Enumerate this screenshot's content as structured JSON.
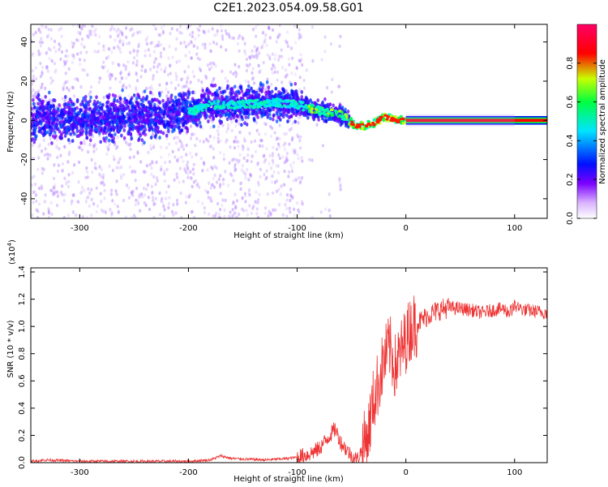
{
  "figure_title": "C2E1.2023.054.09.58.G01",
  "chart_data": [
    {
      "type": "heatmap",
      "xlabel": "Height of straight line (km)",
      "ylabel": "Frequency (Hz)",
      "xlim": [
        -345,
        130
      ],
      "ylim": [
        -50,
        49
      ],
      "xticks": [
        -300,
        -200,
        -100,
        0,
        100
      ],
      "yticks": [
        -40,
        -20,
        0,
        20,
        40
      ],
      "colorbar": {
        "label": "Normalized spectral amplitude",
        "range": [
          0,
          1
        ],
        "ticks": [
          "0.0",
          "0.2",
          "0.4",
          "0.6",
          "0.8"
        ],
        "colormap": [
          "#ffffff",
          "#d9b3ff",
          "#7a00ff",
          "#0010ff",
          "#00e5ff",
          "#00ff40",
          "#c8ff00",
          "#ff0000",
          "#ff0066"
        ]
      },
      "description_of_structure": {
        "scatter_region_x": [
          -345,
          -60
        ],
        "noise_gap_x": [
          -95,
          -62
        ],
        "ridge_points": [
          {
            "x": -340,
            "y": 1
          },
          {
            "x": -300,
            "y": 0
          },
          {
            "x": -250,
            "y": 2
          },
          {
            "x": -200,
            "y": 4
          },
          {
            "x": -180,
            "y": 8
          },
          {
            "x": -150,
            "y": 8
          },
          {
            "x": -120,
            "y": 9
          },
          {
            "x": -100,
            "y": 8
          },
          {
            "x": -80,
            "y": 5
          },
          {
            "x": -60,
            "y": 3
          },
          {
            "x": -45,
            "y": -3
          },
          {
            "x": -30,
            "y": -2
          },
          {
            "x": -20,
            "y": 2
          },
          {
            "x": -10,
            "y": 0
          },
          {
            "x": 0,
            "y": 0
          },
          {
            "x": 130,
            "y": 0
          }
        ]
      }
    },
    {
      "type": "line",
      "xlabel": "Height of straight line (km)",
      "ylabel": "SNR (10 * v/v)",
      "multiplier_label": "(x10",
      "multiplier_exp": "4",
      "multiplier_close": ")",
      "xlim": [
        -345,
        130
      ],
      "ylim": [
        0,
        1.43
      ],
      "xticks": [
        -300,
        -200,
        -100,
        0,
        100
      ],
      "yticks": [
        "0.0",
        "0.2",
        "0.4",
        "0.6",
        "0.8",
        "1.0",
        "1.2",
        "1.4"
      ],
      "series": [
        {
          "color": "#ee3333",
          "x": [
            -345,
            -330,
            -300,
            -260,
            -220,
            -200,
            -180,
            -170,
            -160,
            -130,
            -110,
            -100,
            -90,
            -80,
            -70,
            -65,
            -60,
            -55,
            -50,
            -45,
            -40,
            -35,
            -30,
            -25,
            -20,
            -15,
            -10,
            -5,
            0,
            5,
            10,
            20,
            30,
            40,
            50,
            60,
            70,
            80,
            90,
            95,
            100,
            105,
            110,
            120,
            130
          ],
          "y": [
            0.01,
            0.02,
            0.01,
            0.01,
            0.01,
            0.01,
            0.02,
            0.05,
            0.03,
            0.02,
            0.03,
            0.04,
            0.06,
            0.1,
            0.2,
            0.25,
            0.15,
            0.1,
            0.05,
            0.02,
            0.1,
            0.2,
            0.45,
            0.6,
            0.75,
            0.85,
            0.7,
            0.8,
            0.9,
            1.0,
            1.02,
            1.08,
            1.12,
            1.14,
            1.13,
            1.12,
            1.1,
            1.12,
            1.13,
            1.1,
            1.15,
            1.13,
            1.12,
            1.11,
            1.1
          ]
        }
      ]
    }
  ]
}
